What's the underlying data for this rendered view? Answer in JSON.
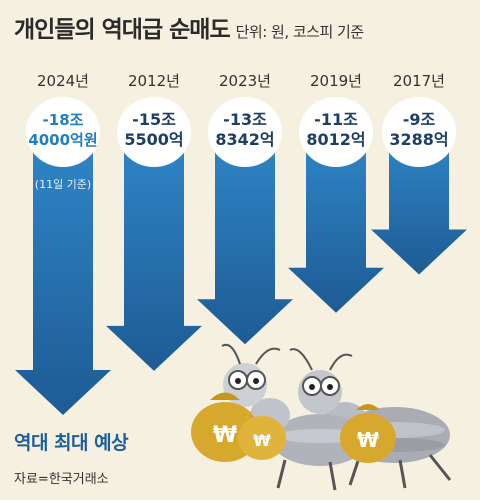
{
  "header": {
    "title": "개인들의 역대급 순매도",
    "unit": "단위: 원, 코스피 기준"
  },
  "footer": {
    "caption": "역대 최대 예상",
    "source": "자료=한국거래소"
  },
  "colors": {
    "arrow_dark": "#1e5b94",
    "arrow_light": "#2f86c7",
    "label_text": "#1d3f66",
    "bubble_fill": "#ffffff",
    "highlight_text": "#1f7fc2",
    "background": "#f6f0e1"
  },
  "illustration": {
    "description_icons": [
      "ant-icon",
      "money-bag-icon"
    ],
    "bag_symbol": "₩"
  },
  "chart_data": {
    "type": "bar",
    "orientation": "downward-arrows",
    "categories": [
      "2024년",
      "2012년",
      "2023년",
      "2019년",
      "2017년"
    ],
    "values": [
      -18.4,
      -15.55,
      -13.8342,
      -11.8012,
      -9.3288
    ],
    "value_labels": [
      [
        "-18조",
        "4000억원"
      ],
      [
        "-15조",
        "5500억"
      ],
      [
        "-13조",
        "8342억"
      ],
      [
        "-11조",
        "8012억"
      ],
      [
        "-9조",
        "3288억"
      ]
    ],
    "notes": [
      "(11일 기준)",
      "",
      "",
      "",
      ""
    ],
    "highlight_index": 0,
    "title": "개인들의 역대급 순매도",
    "ylabel": "",
    "ylim": [
      -18.4,
      0
    ]
  }
}
